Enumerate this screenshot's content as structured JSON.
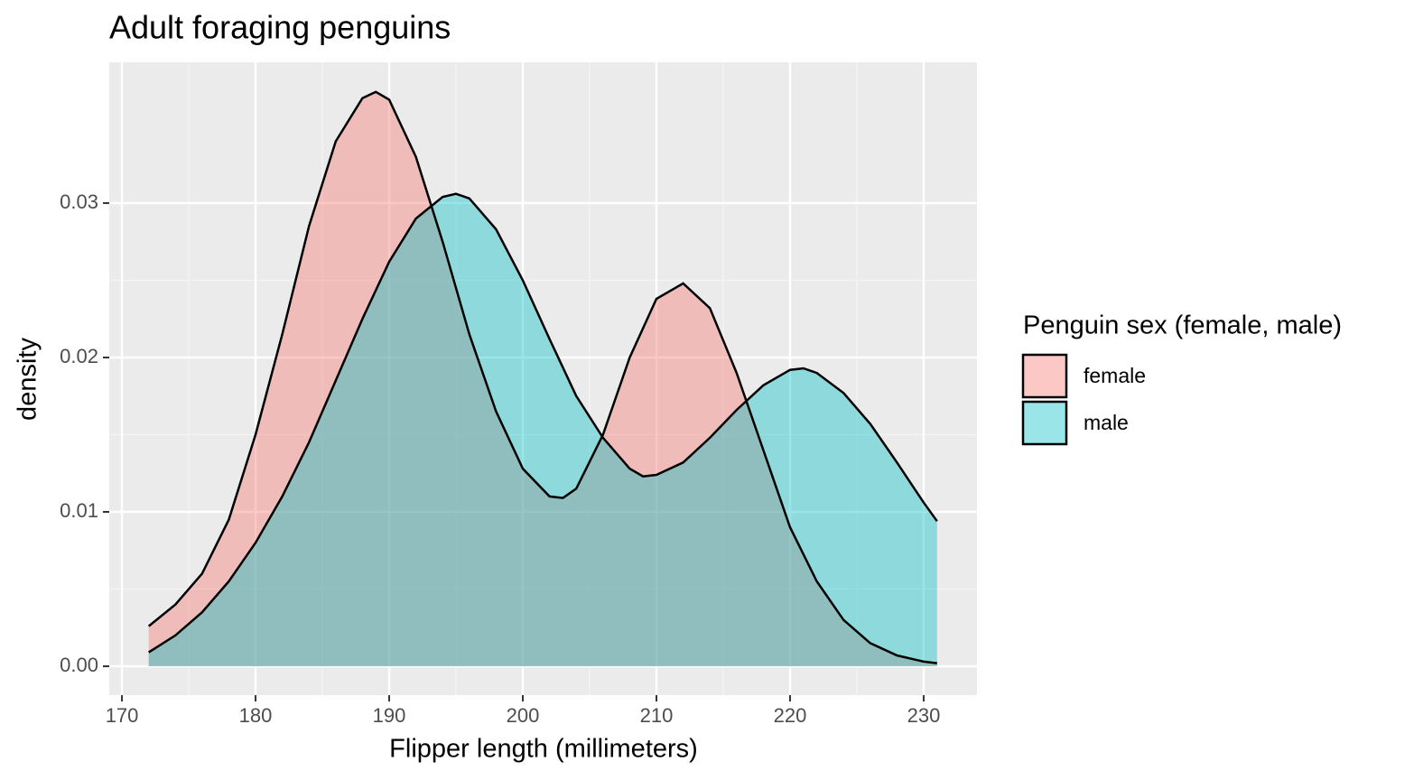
{
  "chart_data": {
    "type": "density",
    "title": "Adult foraging penguins",
    "x_label": "Flipper length (millimeters)",
    "y_label": "density",
    "legend_title": "Penguin sex (female, male)",
    "legend": "right",
    "grid": true,
    "xlim": [
      169.05,
      233.99
    ],
    "ylim": [
      -0.00187,
      0.03912
    ],
    "xticks": [
      170,
      180,
      190,
      200,
      210,
      220,
      230
    ],
    "yticks": [
      {
        "value": 0,
        "label": "0.00"
      },
      0.01,
      0.02,
      0.03
    ],
    "series": [
      {
        "name": "female",
        "color": "#F8766D",
        "x": [
          172,
          174,
          176,
          178,
          180,
          182,
          184,
          186,
          188,
          189,
          190,
          192,
          194,
          196,
          198,
          200,
          202,
          203,
          204,
          206,
          208,
          210,
          212,
          214,
          216,
          218,
          220,
          222,
          224,
          226,
          228,
          230,
          231
        ],
        "values": [
          0.0026,
          0.004,
          0.006,
          0.0095,
          0.015,
          0.0215,
          0.0285,
          0.034,
          0.0368,
          0.0372,
          0.0367,
          0.033,
          0.0275,
          0.0215,
          0.0165,
          0.0128,
          0.011,
          0.0109,
          0.0115,
          0.015,
          0.02,
          0.0238,
          0.0248,
          0.0232,
          0.019,
          0.014,
          0.009,
          0.0055,
          0.003,
          0.0015,
          0.0007,
          0.0003,
          0.0002
        ]
      },
      {
        "name": "male",
        "color": "#00BFC4",
        "x": [
          172,
          174,
          176,
          178,
          180,
          182,
          184,
          186,
          188,
          190,
          192,
          194,
          195,
          196,
          198,
          200,
          202,
          204,
          206,
          208,
          209,
          210,
          212,
          214,
          216,
          218,
          220,
          221,
          222,
          224,
          226,
          228,
          230,
          231
        ],
        "values": [
          0.0009,
          0.002,
          0.0035,
          0.0055,
          0.008,
          0.011,
          0.0145,
          0.0185,
          0.0225,
          0.0262,
          0.029,
          0.0304,
          0.0306,
          0.0303,
          0.0283,
          0.025,
          0.0212,
          0.0175,
          0.0148,
          0.0128,
          0.0123,
          0.0124,
          0.0132,
          0.0148,
          0.0166,
          0.0182,
          0.0192,
          0.0193,
          0.019,
          0.0177,
          0.0157,
          0.0132,
          0.0106,
          0.0094
        ]
      }
    ]
  }
}
